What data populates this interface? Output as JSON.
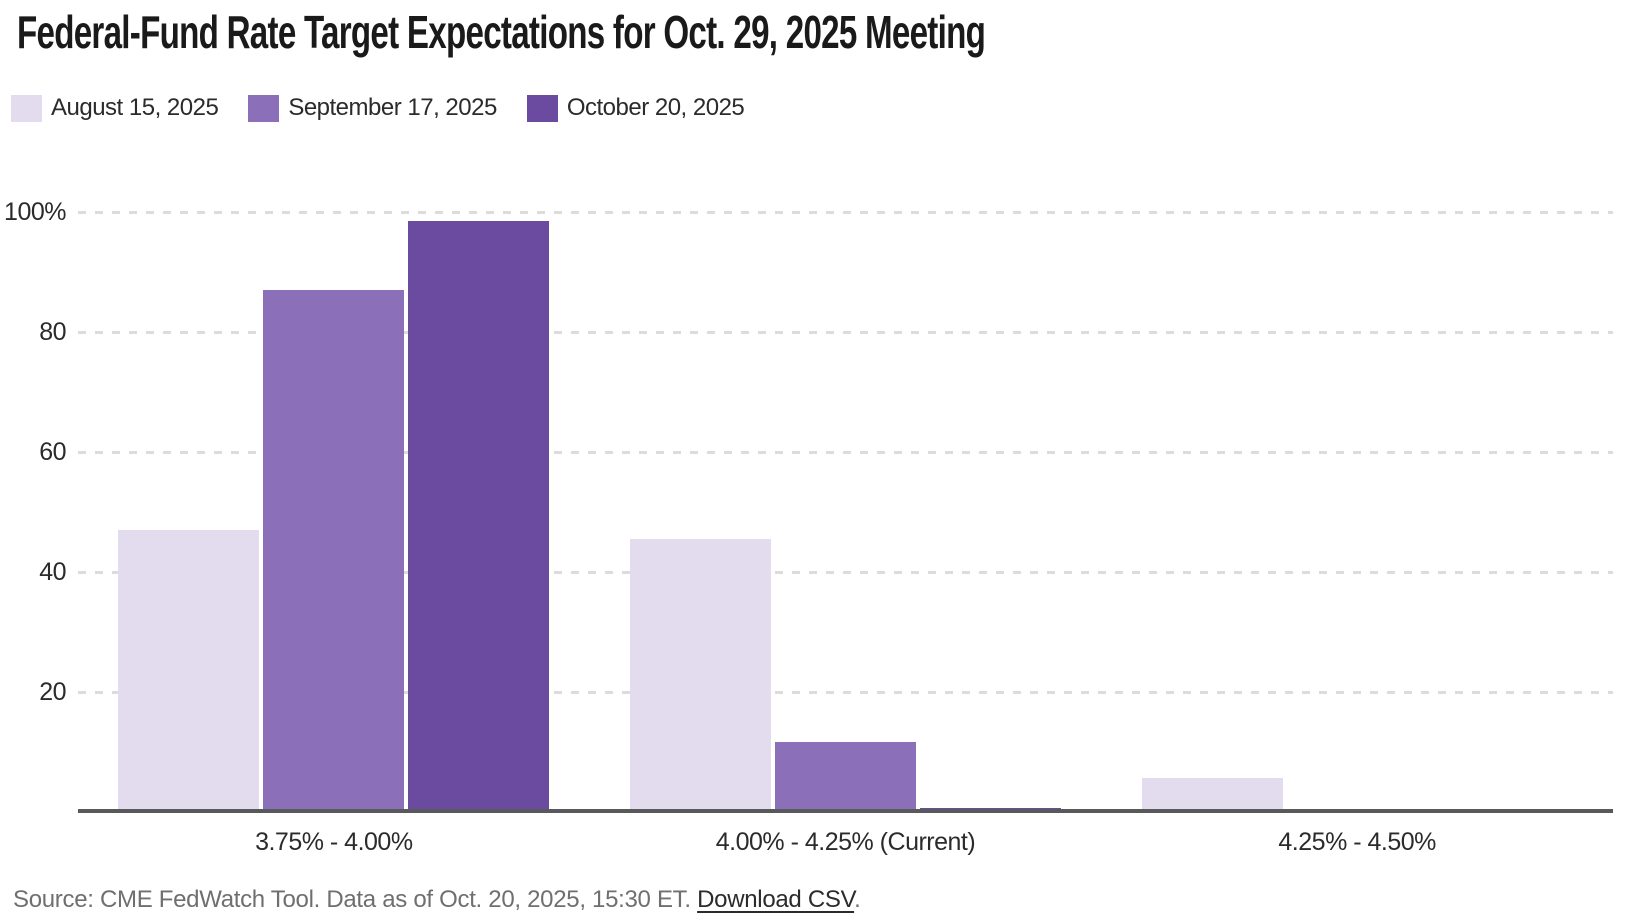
{
  "title": "Federal-Fund Rate Target Expectations for Oct. 29, 2025 Meeting",
  "legend": [
    {
      "label": "August 15, 2025",
      "color": "#e2dcee"
    },
    {
      "label": "September 17, 2025",
      "color": "#8b70b9"
    },
    {
      "label": "October 20, 2025",
      "color": "#6a4b9f"
    }
  ],
  "chart_data": {
    "type": "bar",
    "title": "Federal-Fund Rate Target Expectations for Oct. 29, 2025 Meeting",
    "categories": [
      "3.75% - 4.00%",
      "4.00% - 4.25% (Current)",
      "4.25% - 4.50%"
    ],
    "series": [
      {
        "name": "August 15, 2025",
        "color": "#e2dcee",
        "values": [
          47.0,
          45.5,
          5.7
        ]
      },
      {
        "name": "September 17, 2025",
        "color": "#8b70b9",
        "values": [
          87.0,
          11.7,
          0
        ]
      },
      {
        "name": "October 20, 2025",
        "color": "#6a4b9f",
        "values": [
          98.5,
          0.6,
          0
        ]
      }
    ],
    "xlabel": "",
    "ylabel": "",
    "ylim": [
      0,
      100
    ],
    "yticks": [
      {
        "value": 100,
        "label": "100%"
      },
      {
        "value": 80,
        "label": "80"
      },
      {
        "value": 60,
        "label": "60"
      },
      {
        "value": 40,
        "label": "40"
      },
      {
        "value": 20,
        "label": "20"
      }
    ],
    "grid": "horizontal-dashed",
    "legend_position": "top-left"
  },
  "source": {
    "prefix": "Source: CME FedWatch Tool. Data as of Oct. 20, 2025, 15:30 ET. ",
    "link_label": "Download CSV",
    "suffix": "."
  },
  "colors": {
    "background": "#ffffff",
    "title_text": "#1a1a1a",
    "label_text": "#2b2b2b",
    "source_text": "#6f6f6f",
    "gridline": "#dcdcdc",
    "axis_line": "#58595b"
  }
}
